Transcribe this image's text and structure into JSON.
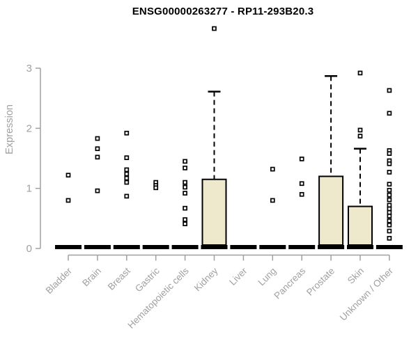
{
  "chart_data": {
    "type": "boxplot",
    "title": "ENSG00000263277 - RP11-293B20.3",
    "ylabel": "Expression",
    "ylim": [
      0,
      3
    ],
    "yticks": [
      0,
      1,
      2,
      3
    ],
    "grid": false,
    "legend": "none",
    "categories": [
      "Bladder",
      "Brain",
      "Breast",
      "Gastric",
      "Hematopoietic cells",
      "Kidney",
      "Liver",
      "Lung",
      "Pancreas",
      "Prostate",
      "Skin",
      "Unknown / Other"
    ],
    "groups": [
      {
        "category": "Bladder",
        "median": 0,
        "q1": 0,
        "q3": 0,
        "whisker_high": 0,
        "points": [
          1.22,
          0.8
        ]
      },
      {
        "category": "Brain",
        "median": 0,
        "q1": 0,
        "q3": 0,
        "whisker_high": 0,
        "points": [
          1.83,
          1.66,
          1.52,
          0.96
        ]
      },
      {
        "category": "Breast",
        "median": 0,
        "q1": 0,
        "q3": 0,
        "whisker_high": 0,
        "points": [
          1.92,
          1.51,
          1.31,
          1.24,
          1.17,
          1.1,
          0.87
        ]
      },
      {
        "category": "Gastric",
        "median": 0,
        "q1": 0,
        "q3": 0,
        "whisker_high": 0,
        "points": [
          1.1,
          1.05,
          1.01
        ]
      },
      {
        "category": "Hematopoietic cells",
        "median": 0,
        "q1": 0,
        "q3": 0,
        "whisker_high": 0,
        "points": [
          1.45,
          1.34,
          1.1,
          1.02,
          0.92,
          0.67,
          0.48,
          0.41
        ]
      },
      {
        "category": "Kidney",
        "median": 0,
        "q1": 0,
        "q3": 1.15,
        "whisker_high": 2.61,
        "points": [
          3.66
        ]
      },
      {
        "category": "Liver",
        "median": 0,
        "q1": 0,
        "q3": 0,
        "whisker_high": 0,
        "points": []
      },
      {
        "category": "Lung",
        "median": 0,
        "q1": 0,
        "q3": 0,
        "whisker_high": 0,
        "points": [
          1.32,
          0.8
        ]
      },
      {
        "category": "Pancreas",
        "median": 0,
        "q1": 0,
        "q3": 0,
        "whisker_high": 0,
        "points": [
          1.49,
          1.08,
          0.9
        ]
      },
      {
        "category": "Prostate",
        "median": 0,
        "q1": 0,
        "q3": 1.2,
        "whisker_high": 2.87,
        "points": []
      },
      {
        "category": "Skin",
        "median": 0,
        "q1": 0,
        "q3": 0.7,
        "whisker_high": 1.66,
        "points": [
          2.92,
          1.97,
          1.87
        ]
      },
      {
        "category": "Unknown / Other",
        "median": 0,
        "q1": 0,
        "q3": 0,
        "whisker_high": 0,
        "points": [
          2.63,
          2.25,
          1.63,
          1.58,
          1.46,
          1.41,
          1.27,
          1.07,
          0.97,
          0.89,
          0.81,
          0.72,
          0.66,
          0.6,
          0.54,
          0.46,
          0.39,
          0.29,
          0.17
        ]
      }
    ],
    "colors": {
      "box_fill": "#EEE8CD",
      "box_border": "#000000",
      "median": "#000000",
      "point_stroke": "#000000",
      "point_fill": "#ffffff",
      "axis": "#a0a0a0",
      "title": "#000000"
    }
  }
}
